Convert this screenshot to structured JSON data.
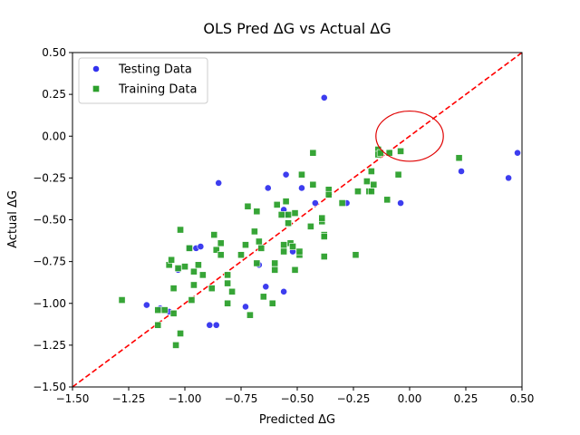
{
  "chart_data": {
    "type": "scatter",
    "title": "OLS Pred ΔG vs Actual ΔG",
    "xlabel": "Predicted ΔG",
    "ylabel": "Actual ΔG",
    "xlim": [
      -1.5,
      0.5
    ],
    "ylim": [
      -1.5,
      0.5
    ],
    "xticks": [
      "−1.50",
      "−1.25",
      "−1.00",
      "−0.75",
      "−0.50",
      "−0.25",
      "0.00",
      "0.25",
      "0.50"
    ],
    "yticks": [
      "−1.50",
      "−1.25",
      "−1.00",
      "−0.75",
      "−0.50",
      "−0.25",
      "0.00",
      "0.25",
      "0.50"
    ],
    "grid": false,
    "legend_position": "top-left",
    "reference_line": {
      "style": "dashed",
      "color": "#ff0000",
      "from": [
        -1.5,
        -1.5
      ],
      "to": [
        0.5,
        0.5
      ]
    },
    "annotation": {
      "shape": "ellipse",
      "color": "#e00000",
      "center": [
        0.0,
        0.0
      ],
      "rx": 0.15,
      "ry": 0.15
    },
    "series": [
      {
        "name": "Testing Data",
        "marker": "circle",
        "color": "#3333ee",
        "points": [
          [
            -1.17,
            -1.01
          ],
          [
            -1.11,
            -1.03
          ],
          [
            -1.07,
            -1.05
          ],
          [
            -1.03,
            -0.8
          ],
          [
            -0.98,
            -0.67
          ],
          [
            -0.95,
            -0.67
          ],
          [
            -0.93,
            -0.66
          ],
          [
            -0.89,
            -1.13
          ],
          [
            -0.86,
            -1.13
          ],
          [
            -0.85,
            -0.28
          ],
          [
            -0.73,
            -1.02
          ],
          [
            -0.67,
            -0.77
          ],
          [
            -0.64,
            -0.9
          ],
          [
            -0.63,
            -0.31
          ],
          [
            -0.56,
            -0.44
          ],
          [
            -0.55,
            -0.23
          ],
          [
            -0.55,
            -0.47
          ],
          [
            -0.56,
            -0.93
          ],
          [
            -0.52,
            -0.69
          ],
          [
            -0.48,
            -0.31
          ],
          [
            -0.42,
            -0.4
          ],
          [
            -0.38,
            0.23
          ],
          [
            -0.28,
            -0.4
          ],
          [
            -0.04,
            -0.4
          ],
          [
            0.23,
            -0.21
          ],
          [
            0.44,
            -0.25
          ],
          [
            0.48,
            -0.1
          ]
        ]
      },
      {
        "name": "Training Data",
        "marker": "square",
        "color": "#2ca02c",
        "points": [
          [
            -1.28,
            -0.98
          ],
          [
            -1.12,
            -1.13
          ],
          [
            -1.12,
            -1.04
          ],
          [
            -1.09,
            -1.04
          ],
          [
            -1.07,
            -0.77
          ],
          [
            -1.06,
            -0.74
          ],
          [
            -1.05,
            -0.91
          ],
          [
            -1.05,
            -1.06
          ],
          [
            -1.04,
            -1.25
          ],
          [
            -1.03,
            -0.79
          ],
          [
            -1.02,
            -1.18
          ],
          [
            -1.02,
            -0.56
          ],
          [
            -1.0,
            -0.78
          ],
          [
            -0.98,
            -0.67
          ],
          [
            -0.97,
            -0.98
          ],
          [
            -0.96,
            -0.81
          ],
          [
            -0.96,
            -0.89
          ],
          [
            -0.94,
            -0.77
          ],
          [
            -0.92,
            -0.83
          ],
          [
            -0.88,
            -0.91
          ],
          [
            -0.87,
            -0.59
          ],
          [
            -0.86,
            -0.68
          ],
          [
            -0.84,
            -0.64
          ],
          [
            -0.84,
            -0.71
          ],
          [
            -0.81,
            -1.0
          ],
          [
            -0.81,
            -0.88
          ],
          [
            -0.81,
            -0.83
          ],
          [
            -0.79,
            -0.93
          ],
          [
            -0.75,
            -0.71
          ],
          [
            -0.73,
            -0.65
          ],
          [
            -0.71,
            -1.07
          ],
          [
            -0.72,
            -0.42
          ],
          [
            -0.69,
            -0.57
          ],
          [
            -0.68,
            -0.45
          ],
          [
            -0.68,
            -0.76
          ],
          [
            -0.67,
            -0.63
          ],
          [
            -0.66,
            -0.67
          ],
          [
            -0.65,
            -0.96
          ],
          [
            -0.61,
            -1.0
          ],
          [
            -0.6,
            -0.76
          ],
          [
            -0.6,
            -0.8
          ],
          [
            -0.59,
            -0.41
          ],
          [
            -0.57,
            -0.47
          ],
          [
            -0.56,
            -0.65
          ],
          [
            -0.56,
            -0.69
          ],
          [
            -0.55,
            -0.39
          ],
          [
            -0.54,
            -0.52
          ],
          [
            -0.54,
            -0.47
          ],
          [
            -0.53,
            -0.64
          ],
          [
            -0.52,
            -0.66
          ],
          [
            -0.51,
            -0.8
          ],
          [
            -0.51,
            -0.46
          ],
          [
            -0.49,
            -0.71
          ],
          [
            -0.49,
            -0.69
          ],
          [
            -0.48,
            -0.23
          ],
          [
            -0.44,
            -0.54
          ],
          [
            -0.43,
            -0.1
          ],
          [
            -0.43,
            -0.29
          ],
          [
            -0.39,
            -0.51
          ],
          [
            -0.39,
            -0.49
          ],
          [
            -0.38,
            -0.59
          ],
          [
            -0.38,
            -0.72
          ],
          [
            -0.38,
            -0.6
          ],
          [
            -0.36,
            -0.32
          ],
          [
            -0.36,
            -0.35
          ],
          [
            -0.3,
            -0.4
          ],
          [
            -0.24,
            -0.71
          ],
          [
            -0.23,
            -0.33
          ],
          [
            -0.19,
            -0.27
          ],
          [
            -0.18,
            -0.33
          ],
          [
            -0.17,
            -0.33
          ],
          [
            -0.17,
            -0.21
          ],
          [
            -0.16,
            -0.29
          ],
          [
            -0.14,
            -0.08
          ],
          [
            -0.14,
            -0.11
          ],
          [
            -0.13,
            -0.1
          ],
          [
            -0.1,
            -0.38
          ],
          [
            -0.09,
            -0.1
          ],
          [
            -0.05,
            -0.23
          ],
          [
            -0.04,
            -0.09
          ],
          [
            0.22,
            -0.13
          ]
        ]
      }
    ]
  }
}
